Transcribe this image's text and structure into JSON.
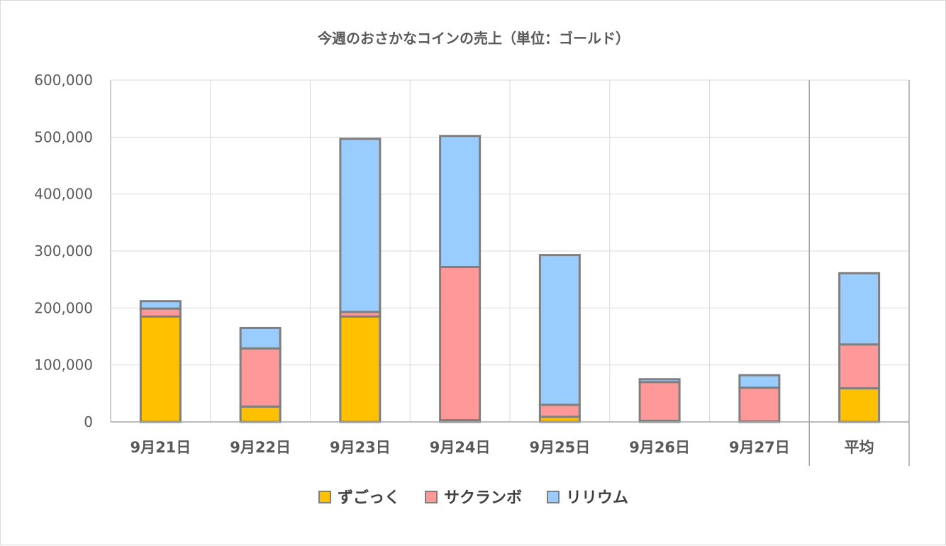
{
  "chart_data": {
    "type": "bar",
    "stacked": true,
    "title": "今週のおさかなコインの売上（単位：ゴールド）",
    "categories": [
      "9月21日",
      "9月22日",
      "9月23日",
      "9月24日",
      "9月25日",
      "9月26日",
      "9月27日",
      "平均"
    ],
    "series": [
      {
        "name": "ずごっく",
        "color": "#ffc000",
        "values": [
          185000,
          27000,
          185000,
          3000,
          9000,
          2000,
          1000,
          59000
        ]
      },
      {
        "name": "サクランボ",
        "color": "#ff9999",
        "values": [
          14000,
          102000,
          8000,
          269000,
          21000,
          68000,
          59000,
          77000
        ]
      },
      {
        "name": "リリウム",
        "color": "#99ccff",
        "values": [
          13000,
          36000,
          304000,
          230000,
          263000,
          5000,
          22000,
          125000
        ]
      }
    ],
    "y_ticks": [
      "0",
      "100,000",
      "200,000",
      "300,000",
      "400,000",
      "500,000",
      "600,000"
    ],
    "ylim": [
      0,
      600000
    ],
    "grid": true,
    "legend_position": "bottom",
    "bar_outline_color": "#7f7f7f"
  }
}
